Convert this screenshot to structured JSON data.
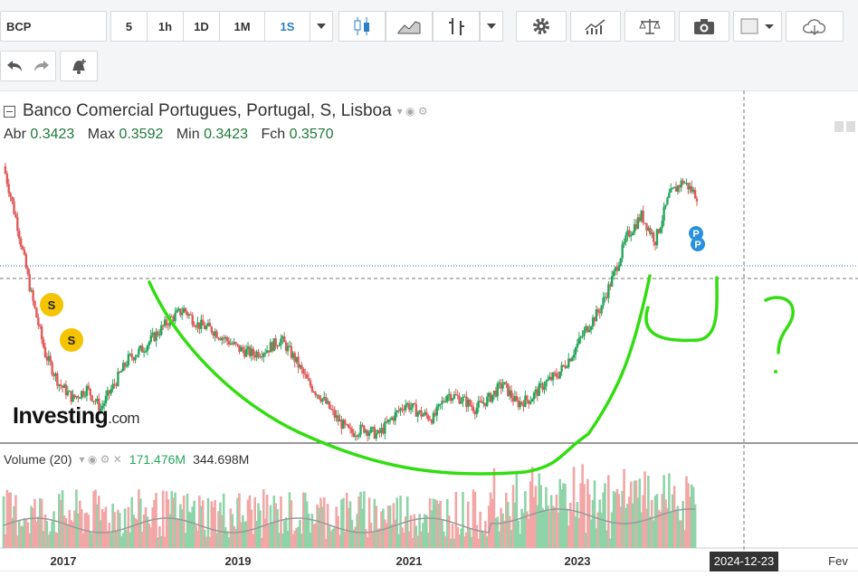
{
  "toolbar": {
    "symbol": "BCP",
    "resolutions": [
      "5",
      "1h",
      "1D",
      "1M",
      "1S"
    ],
    "active_resolution": "1S",
    "icons": [
      "candles-icon",
      "area-chart-icon",
      "bars-icon",
      "gear-icon",
      "indicators-icon",
      "scale-icon",
      "camera-icon",
      "color-square-icon",
      "cloud-download-icon"
    ],
    "row2_icons": [
      "undo-icon",
      "redo-icon",
      "alert-bell-icon"
    ]
  },
  "legend": {
    "title": "Banco Comercial Portugues, Portugal, S, Lisboa",
    "open_label": "Abr",
    "open": "0.3423",
    "high_label": "Max",
    "high": "0.3592",
    "low_label": "Min",
    "low": "0.3423",
    "close_label": "Fch",
    "close": "0.3570"
  },
  "volume_legend": {
    "name": "Volume (20)",
    "value1": "171.476M",
    "value2": "344.698M"
  },
  "logo": {
    "main": "Investing",
    "suffix": ".com"
  },
  "annotation": {
    "question_mark": "?",
    "marker_s": "S",
    "marker_p": "P"
  },
  "colors": {
    "up": "#26a65b",
    "down": "#e15a5a",
    "drawing": "#33dd11",
    "vol_up": "#8fd4a8",
    "vol_down": "#f2a6a6",
    "ma": "#999999",
    "blue_marker": "#2a90e0",
    "s_marker": "#f5c400"
  },
  "chart_data": {
    "type": "line",
    "title": "",
    "xlabel": "",
    "ylabel": "",
    "x_ticks": [
      "2017",
      "2019",
      "2021",
      "2023"
    ],
    "crosshair_date": "2024-12-23",
    "next_tick": "Fev",
    "ylim": [
      0.08,
      0.4
    ],
    "series": [
      {
        "values": [
          0.36,
          0.3,
          0.23,
          0.17,
          0.14,
          0.125,
          0.135,
          0.115,
          0.14,
          0.165,
          0.175,
          0.19,
          0.205,
          0.215,
          0.2,
          0.195,
          0.185,
          0.175,
          0.17,
          0.175,
          0.185,
          0.165,
          0.14,
          0.125,
          0.105,
          0.09,
          0.095,
          0.088,
          0.105,
          0.12,
          0.11,
          0.105,
          0.13,
          0.125,
          0.115,
          0.125,
          0.14,
          0.12,
          0.125,
          0.14,
          0.15,
          0.17,
          0.195,
          0.215,
          0.25,
          0.29,
          0.31,
          0.285,
          0.33,
          0.345,
          0.33
        ]
      }
    ]
  }
}
